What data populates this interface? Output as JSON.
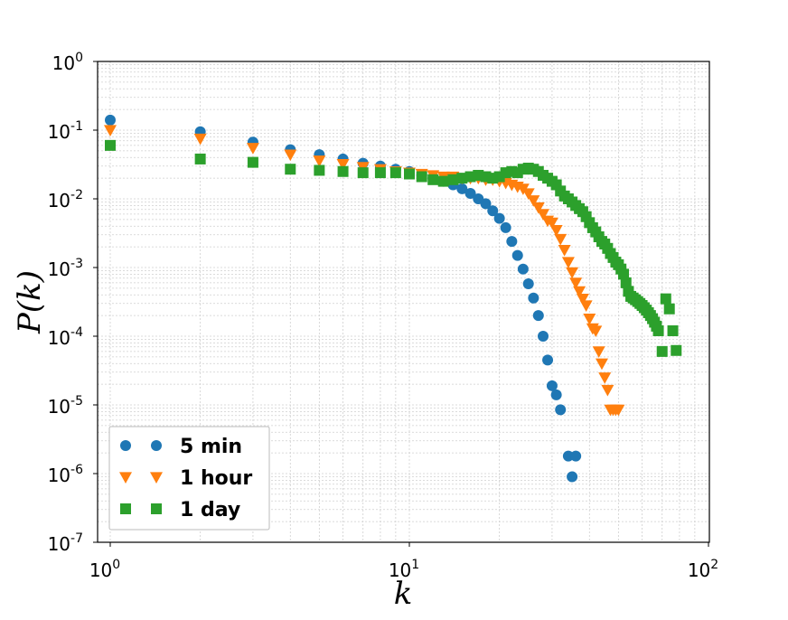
{
  "chart_data": {
    "type": "scatter",
    "title": "",
    "xlabel": "k",
    "ylabel": "P(k)",
    "xscale": "log",
    "yscale": "log",
    "xlim": [
      0.9,
      100
    ],
    "ylim": [
      1e-07,
      1
    ],
    "grid": true,
    "legend_position": "bottom-left",
    "x_ticks": [
      {
        "base": "10",
        "exp": "0",
        "value": 1
      },
      {
        "base": "10",
        "exp": "1",
        "value": 10
      },
      {
        "base": "10",
        "exp": "2",
        "value": 100
      }
    ],
    "y_ticks": [
      {
        "base": "10",
        "exp": "0",
        "value": 1
      },
      {
        "base": "10",
        "exp": "-1",
        "value": 0.1
      },
      {
        "base": "10",
        "exp": "-2",
        "value": 0.01
      },
      {
        "base": "10",
        "exp": "-3",
        "value": 0.001
      },
      {
        "base": "10",
        "exp": "-4",
        "value": 0.0001
      },
      {
        "base": "10",
        "exp": "-5",
        "value": 1e-05
      },
      {
        "base": "10",
        "exp": "-6",
        "value": 1e-06
      },
      {
        "base": "10",
        "exp": "-7",
        "value": 1e-07
      }
    ],
    "series": [
      {
        "name": "5 min",
        "marker": "circle",
        "color": "#1f77b4",
        "points": [
          [
            1,
            0.14
          ],
          [
            2,
            0.095
          ],
          [
            3,
            0.067
          ],
          [
            4,
            0.052
          ],
          [
            5,
            0.044
          ],
          [
            6,
            0.038
          ],
          [
            7,
            0.033
          ],
          [
            8,
            0.03
          ],
          [
            9,
            0.027
          ],
          [
            10,
            0.025
          ],
          [
            11,
            0.022
          ],
          [
            12,
            0.02
          ],
          [
            13,
            0.018
          ],
          [
            14,
            0.016
          ],
          [
            15,
            0.014
          ],
          [
            16,
            0.012
          ],
          [
            17,
            0.01
          ],
          [
            18,
            0.0085
          ],
          [
            19,
            0.0067
          ],
          [
            20,
            0.0052
          ],
          [
            21,
            0.0038
          ],
          [
            22,
            0.0024
          ],
          [
            23,
            0.0015
          ],
          [
            24,
            0.00095
          ],
          [
            25,
            0.00058
          ],
          [
            26,
            0.00036
          ],
          [
            27,
            0.0002
          ],
          [
            28,
            0.0001
          ],
          [
            29,
            4.5e-05
          ],
          [
            30,
            1.9e-05
          ],
          [
            31,
            1.4e-05
          ],
          [
            32,
            8.5e-06
          ],
          [
            34,
            1.8e-06
          ],
          [
            35,
            9e-07
          ],
          [
            36,
            1.8e-06
          ]
        ]
      },
      {
        "name": "1 hour",
        "marker": "triangle-down",
        "color": "#ff7f0e",
        "points": [
          [
            1,
            0.1
          ],
          [
            2,
            0.075
          ],
          [
            3,
            0.055
          ],
          [
            4,
            0.044
          ],
          [
            5,
            0.036
          ],
          [
            6,
            0.032
          ],
          [
            7,
            0.029
          ],
          [
            8,
            0.027
          ],
          [
            9,
            0.025
          ],
          [
            10,
            0.024
          ],
          [
            11,
            0.023
          ],
          [
            12,
            0.022
          ],
          [
            13,
            0.021
          ],
          [
            14,
            0.021
          ],
          [
            15,
            0.02
          ],
          [
            16,
            0.02
          ],
          [
            17,
            0.02
          ],
          [
            18,
            0.019
          ],
          [
            19,
            0.019
          ],
          [
            20,
            0.018
          ],
          [
            21,
            0.017
          ],
          [
            22,
            0.016
          ],
          [
            23,
            0.015
          ],
          [
            24,
            0.014
          ],
          [
            25,
            0.012
          ],
          [
            26,
            0.0095
          ],
          [
            27,
            0.0075
          ],
          [
            28,
            0.006
          ],
          [
            29,
            0.0048
          ],
          [
            30,
            0.0045
          ],
          [
            31,
            0.0035
          ],
          [
            32,
            0.0026
          ],
          [
            33,
            0.0018
          ],
          [
            34,
            0.0012
          ],
          [
            35,
            0.00085
          ],
          [
            36,
            0.0006
          ],
          [
            37,
            0.00045
          ],
          [
            38,
            0.00035
          ],
          [
            39,
            0.00028
          ],
          [
            40,
            0.00018
          ],
          [
            41,
            0.00013
          ],
          [
            42,
            0.00012
          ],
          [
            43,
            6e-05
          ],
          [
            44,
            4e-05
          ],
          [
            45,
            2.5e-05
          ],
          [
            46,
            1.65e-05
          ],
          [
            47,
            8.5e-06
          ],
          [
            48,
            8.5e-06
          ],
          [
            49,
            8.5e-06
          ],
          [
            50,
            8.5e-06
          ]
        ]
      },
      {
        "name": "1 day",
        "marker": "square",
        "color": "#2ca02c",
        "points": [
          [
            1,
            0.06
          ],
          [
            2,
            0.038
          ],
          [
            3,
            0.034
          ],
          [
            4,
            0.027
          ],
          [
            5,
            0.026
          ],
          [
            6,
            0.025
          ],
          [
            7,
            0.024
          ],
          [
            8,
            0.024
          ],
          [
            9,
            0.024
          ],
          [
            10,
            0.023
          ],
          [
            11,
            0.021
          ],
          [
            12,
            0.019
          ],
          [
            13,
            0.018
          ],
          [
            14,
            0.019
          ],
          [
            15,
            0.02
          ],
          [
            16,
            0.021
          ],
          [
            17,
            0.022
          ],
          [
            18,
            0.021
          ],
          [
            19,
            0.02
          ],
          [
            20,
            0.021
          ],
          [
            21,
            0.024
          ],
          [
            22,
            0.025
          ],
          [
            23,
            0.024
          ],
          [
            24,
            0.027
          ],
          [
            25,
            0.028
          ],
          [
            26,
            0.027
          ],
          [
            27,
            0.025
          ],
          [
            28,
            0.022
          ],
          [
            29,
            0.02
          ],
          [
            30,
            0.018
          ],
          [
            31,
            0.016
          ],
          [
            32,
            0.013
          ],
          [
            33,
            0.011
          ],
          [
            34,
            0.01
          ],
          [
            35,
            0.009
          ],
          [
            36,
            0.008
          ],
          [
            37,
            0.0072
          ],
          [
            38,
            0.0065
          ],
          [
            39,
            0.0055
          ],
          [
            40,
            0.0045
          ],
          [
            41,
            0.0038
          ],
          [
            42,
            0.0033
          ],
          [
            43,
            0.0028
          ],
          [
            44,
            0.0024
          ],
          [
            45,
            0.0022
          ],
          [
            46,
            0.0019
          ],
          [
            47,
            0.0016
          ],
          [
            48,
            0.0014
          ],
          [
            49,
            0.0012
          ],
          [
            50,
            0.0011
          ],
          [
            51,
            0.00095
          ],
          [
            52,
            0.0008
          ],
          [
            53,
            0.0006
          ],
          [
            54,
            0.00045
          ],
          [
            55,
            0.00038
          ],
          [
            56,
            0.00036
          ],
          [
            57,
            0.00034
          ],
          [
            58,
            0.00032
          ],
          [
            59,
            0.0003
          ],
          [
            60,
            0.00028
          ],
          [
            61,
            0.00026
          ],
          [
            62,
            0.00024
          ],
          [
            63,
            0.00022
          ],
          [
            64,
            0.0002
          ],
          [
            65,
            0.00018
          ],
          [
            66,
            0.00016
          ],
          [
            67,
            0.00014
          ],
          [
            68,
            0.00012
          ],
          [
            70,
            6e-05
          ],
          [
            72,
            0.00035
          ],
          [
            74,
            0.00025
          ],
          [
            76,
            0.00012
          ],
          [
            78,
            6.2e-05
          ]
        ]
      }
    ]
  }
}
